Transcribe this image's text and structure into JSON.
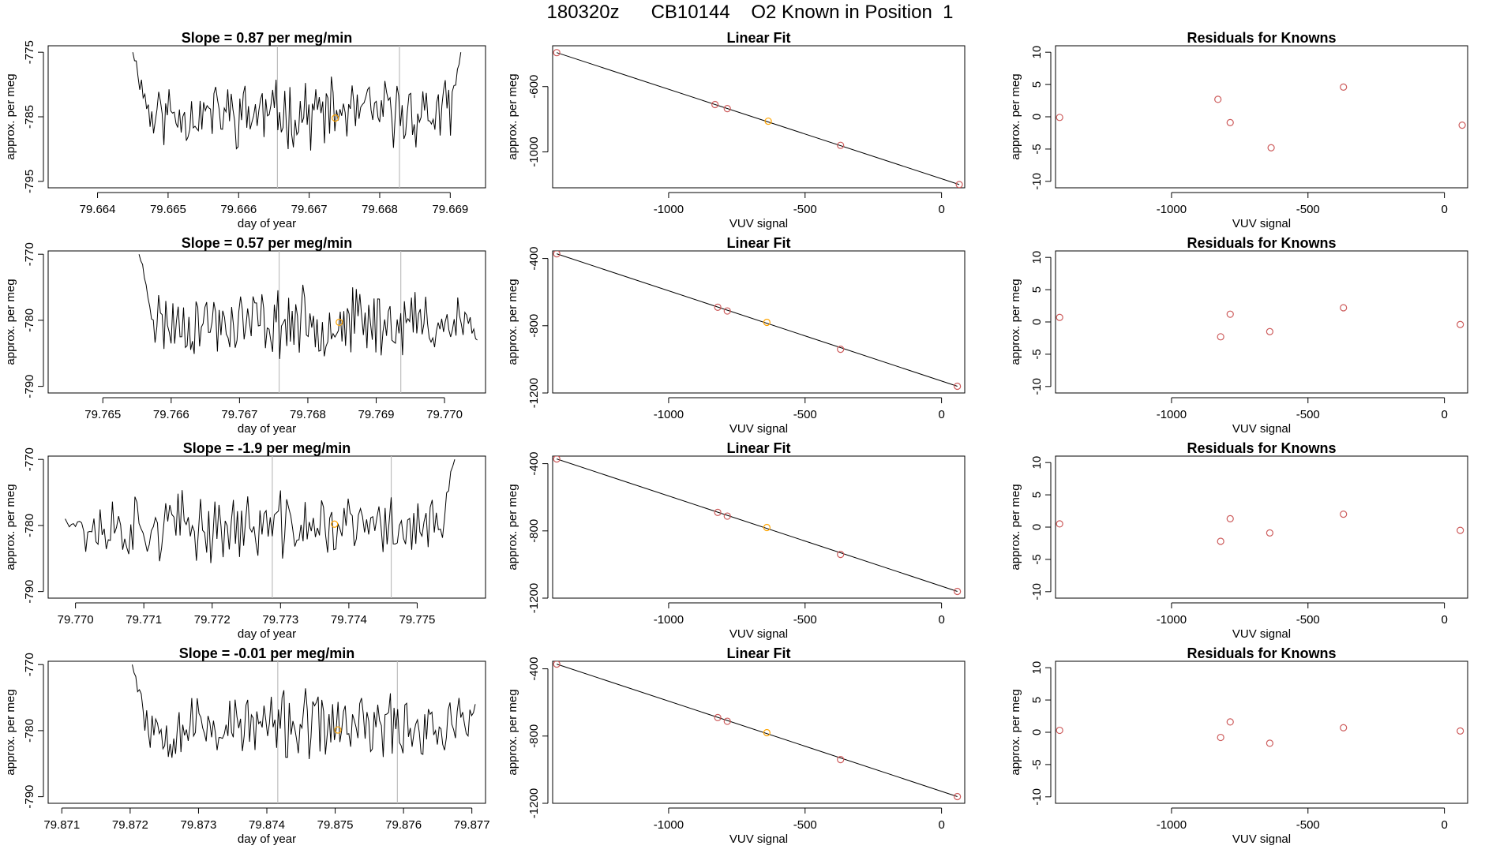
{
  "page_title": "180320z      CB10144    O2 Known in Position  1",
  "colors": {
    "series": "#000000",
    "marker": "#cd5c5c",
    "highlight": "#ffa500",
    "vline": "#bebebe",
    "fit": "#000000"
  },
  "chart_data": [
    {
      "id": "r1-slope",
      "type": "line",
      "title": "Slope =  0.87  per meg/min",
      "xlabel": "day of year",
      "ylabel": "approx. per meg",
      "xlim": [
        79.6633,
        79.6695
      ],
      "ylim": [
        -796,
        -774
      ],
      "xticks": [
        79.664,
        79.665,
        79.666,
        79.667,
        79.668,
        79.669
      ],
      "xtick_labels": [
        "79.664",
        "79.665",
        "79.666",
        "79.667",
        "79.668",
        "79.669"
      ],
      "yticks": [
        -775,
        -785,
        -795
      ],
      "ytick_labels": [
        "-775",
        "-785",
        "-795"
      ],
      "vlines": [
        79.66655,
        79.66828
      ],
      "series_start": 79.6645,
      "series_end": 79.66915,
      "series_base": -784.5,
      "rise_start": -775,
      "rise_end": -775,
      "seed": 11,
      "highlight_point": [
        79.66737,
        -785.2
      ]
    },
    {
      "id": "r1-fit",
      "type": "scatter",
      "title": "Linear Fit",
      "xlabel": "VUV signal",
      "ylabel": "approx. per meg",
      "xlim": [
        -1425,
        85
      ],
      "ylim": [
        -1220,
        -350
      ],
      "xticks": [
        -1000,
        -500,
        0
      ],
      "xtick_labels": [
        "-1000",
        "-500",
        "0"
      ],
      "yticks": [
        -600,
        -1000
      ],
      "ytick_labels": [
        "-600",
        "-1000"
      ],
      "points": [
        [
          -1410,
          -392
        ],
        [
          -830,
          -710
        ],
        [
          -785,
          -735
        ],
        [
          -635,
          -812
        ],
        [
          -370,
          -960
        ],
        [
          65,
          -1200
        ]
      ],
      "highlight_index": 3,
      "fit_line": [
        [
          -1410,
          -392
        ],
        [
          65,
          -1200
        ]
      ]
    },
    {
      "id": "r1-resid",
      "type": "scatter",
      "title": "Residuals for Knowns",
      "xlabel": "VUV signal",
      "ylabel": "approx. per meg",
      "xlim": [
        -1425,
        85
      ],
      "ylim": [
        -11,
        11
      ],
      "xticks": [
        -1000,
        -500,
        0
      ],
      "xtick_labels": [
        "-1000",
        "-500",
        "0"
      ],
      "yticks": [
        10,
        5,
        0,
        -5,
        -10
      ],
      "ytick_labels": [
        "10",
        "5",
        "0",
        "-5",
        "-10"
      ],
      "points": [
        [
          -1410,
          -0.1
        ],
        [
          -830,
          2.7
        ],
        [
          -785,
          -0.9
        ],
        [
          -635,
          -4.8
        ],
        [
          -370,
          4.6
        ],
        [
          65,
          -1.3
        ]
      ]
    },
    {
      "id": "r2-slope",
      "type": "line",
      "title": "Slope =  0.57  per meg/min",
      "xlabel": "day of year",
      "ylabel": "approx. per meg",
      "xlim": [
        79.7642,
        79.7706
      ],
      "ylim": [
        -791,
        -769.5
      ],
      "xticks": [
        79.765,
        79.766,
        79.767,
        79.768,
        79.769,
        79.77
      ],
      "xtick_labels": [
        "79.765",
        "79.766",
        "79.767",
        "79.768",
        "79.769",
        "79.770"
      ],
      "yticks": [
        -770,
        -780,
        -790
      ],
      "ytick_labels": [
        "-770",
        "-780",
        "-790"
      ],
      "vlines": [
        79.76758,
        79.76936
      ],
      "series_start": 79.76553,
      "series_end": 79.77048,
      "series_base": -780.3,
      "rise_start": -770,
      "rise_end": -783,
      "seed": 23,
      "highlight_point": [
        79.76846,
        -780.3
      ]
    },
    {
      "id": "r2-fit",
      "type": "scatter",
      "title": "Linear Fit",
      "xlabel": "VUV signal",
      "ylabel": "approx. per meg",
      "xlim": [
        -1425,
        85
      ],
      "ylim": [
        -1200,
        -355
      ],
      "xticks": [
        -1000,
        -500,
        0
      ],
      "xtick_labels": [
        "-1000",
        "-500",
        "0"
      ],
      "yticks": [
        -400,
        -800,
        -1200
      ],
      "ytick_labels": [
        "-400",
        "-800",
        "-1200"
      ],
      "points": [
        [
          -1410,
          -372
        ],
        [
          -820,
          -690
        ],
        [
          -785,
          -712
        ],
        [
          -640,
          -780
        ],
        [
          -370,
          -940
        ],
        [
          58,
          -1160
        ]
      ],
      "highlight_index": 3,
      "fit_line": [
        [
          -1410,
          -372
        ],
        [
          58,
          -1160
        ]
      ]
    },
    {
      "id": "r2-resid",
      "type": "scatter",
      "title": "Residuals for Knowns",
      "xlabel": "VUV signal",
      "ylabel": "approx. per meg",
      "xlim": [
        -1425,
        85
      ],
      "ylim": [
        -11,
        11
      ],
      "xticks": [
        -1000,
        -500,
        0
      ],
      "xtick_labels": [
        "-1000",
        "-500",
        "0"
      ],
      "yticks": [
        10,
        5,
        0,
        -5,
        -10
      ],
      "ytick_labels": [
        "10",
        "5",
        "0",
        "-5",
        "-10"
      ],
      "points": [
        [
          -1410,
          0.7
        ],
        [
          -820,
          -2.3
        ],
        [
          -785,
          1.2
        ],
        [
          -640,
          -1.5
        ],
        [
          -370,
          2.2
        ],
        [
          58,
          -0.4
        ]
      ]
    },
    {
      "id": "r3-slope",
      "type": "line",
      "title": "Slope =  -1.9  per meg/min",
      "xlabel": "day of year",
      "ylabel": "approx. per meg",
      "xlim": [
        79.7696,
        79.776
      ],
      "ylim": [
        -791,
        -769.5
      ],
      "xticks": [
        79.77,
        79.771,
        79.772,
        79.773,
        79.774,
        79.775
      ],
      "xtick_labels": [
        "79.770",
        "79.771",
        "79.772",
        "79.773",
        "79.774",
        "79.775"
      ],
      "yticks": [
        -770,
        -780,
        -790
      ],
      "ytick_labels": [
        "-770",
        "-780",
        "-790"
      ],
      "vlines": [
        79.77288,
        79.77462
      ],
      "series_start": 79.76985,
      "series_end": 79.77555,
      "series_base": -780.2,
      "rise_start": -779,
      "rise_end": -770,
      "seed": 37,
      "highlight_point": [
        79.77379,
        -779.8
      ]
    },
    {
      "id": "r3-fit",
      "type": "scatter",
      "title": "Linear Fit",
      "xlabel": "VUV signal",
      "ylabel": "approx. per meg",
      "xlim": [
        -1425,
        85
      ],
      "ylim": [
        -1200,
        -355
      ],
      "xticks": [
        -1000,
        -500,
        0
      ],
      "xtick_labels": [
        "-1000",
        "-500",
        "0"
      ],
      "yticks": [
        -400,
        -800,
        -1200
      ],
      "ytick_labels": [
        "-400",
        "-800",
        "-1200"
      ],
      "points": [
        [
          -1410,
          -372
        ],
        [
          -820,
          -690
        ],
        [
          -785,
          -712
        ],
        [
          -640,
          -780
        ],
        [
          -370,
          -940
        ],
        [
          58,
          -1160
        ]
      ],
      "highlight_index": 3,
      "fit_line": [
        [
          -1410,
          -372
        ],
        [
          58,
          -1160
        ]
      ]
    },
    {
      "id": "r3-resid",
      "type": "scatter",
      "title": "Residuals for Knowns",
      "xlabel": "VUV signal",
      "ylabel": "approx. per meg",
      "xlim": [
        -1425,
        85
      ],
      "ylim": [
        -11,
        11
      ],
      "xticks": [
        -1000,
        -500,
        0
      ],
      "xtick_labels": [
        "-1000",
        "-500",
        "0"
      ],
      "yticks": [
        10,
        5,
        0,
        -5,
        -10
      ],
      "ytick_labels": [
        "10",
        "5",
        "0",
        "-5",
        "-10"
      ],
      "points": [
        [
          -1410,
          0.5
        ],
        [
          -820,
          -2.2
        ],
        [
          -785,
          1.3
        ],
        [
          -640,
          -0.9
        ],
        [
          -370,
          2.0
        ],
        [
          58,
          -0.5
        ]
      ]
    },
    {
      "id": "r4-slope",
      "type": "line",
      "title": "Slope =  -0.01  per meg/min",
      "xlabel": "day of year",
      "ylabel": "approx. per meg",
      "xlim": [
        79.8708,
        79.8772
      ],
      "ylim": [
        -791,
        -769.5
      ],
      "xticks": [
        79.871,
        79.872,
        79.873,
        79.874,
        79.875,
        79.876,
        79.877
      ],
      "xtick_labels": [
        "79.871",
        "79.872",
        "79.873",
        "79.874",
        "79.875",
        "79.876",
        "79.877"
      ],
      "yticks": [
        -770,
        -780,
        -790
      ],
      "ytick_labels": [
        "-770",
        "-780",
        "-790"
      ],
      "vlines": [
        79.87416,
        79.87591
      ],
      "series_start": 79.87203,
      "series_end": 79.87705,
      "series_base": -779.3,
      "rise_start": -770,
      "rise_end": -776,
      "seed": 53,
      "highlight_point": [
        79.87504,
        -779.9
      ]
    },
    {
      "id": "r4-fit",
      "type": "scatter",
      "title": "Linear Fit",
      "xlabel": "VUV signal",
      "ylabel": "approx. per meg",
      "xlim": [
        -1425,
        85
      ],
      "ylim": [
        -1200,
        -355
      ],
      "xticks": [
        -1000,
        -500,
        0
      ],
      "xtick_labels": [
        "-1000",
        "-500",
        "0"
      ],
      "yticks": [
        -400,
        -800,
        -1200
      ],
      "ytick_labels": [
        "-400",
        "-800",
        "-1200"
      ],
      "points": [
        [
          -1410,
          -372
        ],
        [
          -820,
          -690
        ],
        [
          -785,
          -712
        ],
        [
          -640,
          -780
        ],
        [
          -370,
          -940
        ],
        [
          58,
          -1160
        ]
      ],
      "highlight_index": 3,
      "fit_line": [
        [
          -1410,
          -372
        ],
        [
          58,
          -1160
        ]
      ]
    },
    {
      "id": "r4-resid",
      "type": "scatter",
      "title": "Residuals for Knowns",
      "xlabel": "VUV signal",
      "ylabel": "approx. per meg",
      "xlim": [
        -1425,
        85
      ],
      "ylim": [
        -11,
        11
      ],
      "xticks": [
        -1000,
        -500,
        0
      ],
      "xtick_labels": [
        "-1000",
        "-500",
        "0"
      ],
      "yticks": [
        10,
        5,
        0,
        -5,
        -10
      ],
      "ytick_labels": [
        "10",
        "5",
        "0",
        "-5",
        "-10"
      ],
      "points": [
        [
          -1410,
          0.3
        ],
        [
          -820,
          -0.8
        ],
        [
          -785,
          1.6
        ],
        [
          -640,
          -1.7
        ],
        [
          -370,
          0.7
        ],
        [
          58,
          0.2
        ]
      ]
    }
  ]
}
